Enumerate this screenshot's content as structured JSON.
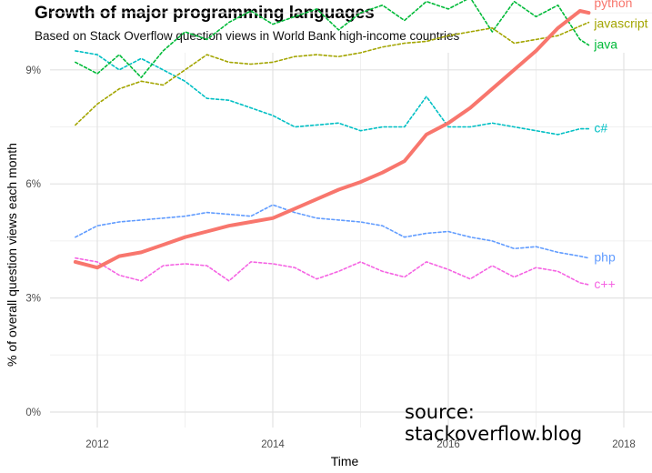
{
  "chart_data": {
    "type": "line",
    "title": "Growth of major programming languages",
    "subtitle": "Based on Stack Overflow question views in World Bank high-income countries",
    "xlabel": "Time",
    "ylabel": "% of overall question views each month",
    "source": "source: stackoverflow.blog",
    "x_ticks": [
      {
        "value": 2012,
        "label": "2012"
      },
      {
        "value": 2014,
        "label": "2014"
      },
      {
        "value": 2016,
        "label": "2016"
      },
      {
        "value": 2018,
        "label": "2018"
      }
    ],
    "y_ticks": [
      {
        "value": 0,
        "label": "0%"
      },
      {
        "value": 3,
        "label": "3%"
      },
      {
        "value": 6,
        "label": "6%"
      },
      {
        "value": 9,
        "label": "9%"
      }
    ],
    "grid": true,
    "legend": "direct labels at line ends",
    "series": [
      {
        "name": "python",
        "color": "#f8766d",
        "line": "solid",
        "width": 4,
        "points": [
          [
            2011.75,
            3.95
          ],
          [
            2012.0,
            3.8
          ],
          [
            2012.25,
            4.1
          ],
          [
            2012.5,
            4.2
          ],
          [
            2012.75,
            4.4
          ],
          [
            2013.0,
            4.6
          ],
          [
            2013.25,
            4.75
          ],
          [
            2013.5,
            4.9
          ],
          [
            2013.75,
            5.0
          ],
          [
            2014.0,
            5.1
          ],
          [
            2014.25,
            5.35
          ],
          [
            2014.5,
            5.6
          ],
          [
            2014.75,
            5.85
          ],
          [
            2015.0,
            6.05
          ],
          [
            2015.25,
            6.3
          ],
          [
            2015.5,
            6.6
          ],
          [
            2015.75,
            7.3
          ],
          [
            2016.0,
            7.6
          ],
          [
            2016.25,
            8.0
          ],
          [
            2016.5,
            8.5
          ],
          [
            2016.75,
            9.0
          ],
          [
            2017.0,
            9.5
          ],
          [
            2017.25,
            10.1
          ],
          [
            2017.5,
            10.55
          ],
          [
            2017.6,
            10.5
          ]
        ]
      },
      {
        "name": "javascript",
        "color": "#a3a500",
        "line": "dashed",
        "width": 1.6,
        "points": [
          [
            2011.75,
            7.55
          ],
          [
            2012.0,
            8.1
          ],
          [
            2012.25,
            8.5
          ],
          [
            2012.5,
            8.7
          ],
          [
            2012.75,
            8.6
          ],
          [
            2013.0,
            9.0
          ],
          [
            2013.25,
            9.4
          ],
          [
            2013.5,
            9.2
          ],
          [
            2013.75,
            9.15
          ],
          [
            2014.0,
            9.2
          ],
          [
            2014.25,
            9.35
          ],
          [
            2014.5,
            9.4
          ],
          [
            2014.75,
            9.35
          ],
          [
            2015.0,
            9.45
          ],
          [
            2015.25,
            9.6
          ],
          [
            2015.5,
            9.7
          ],
          [
            2015.75,
            9.75
          ],
          [
            2016.0,
            9.9
          ],
          [
            2016.25,
            10.0
          ],
          [
            2016.5,
            10.1
          ],
          [
            2016.75,
            9.7
          ],
          [
            2017.0,
            9.8
          ],
          [
            2017.25,
            9.9
          ],
          [
            2017.5,
            10.15
          ],
          [
            2017.6,
            10.25
          ]
        ]
      },
      {
        "name": "java",
        "color": "#00ba38",
        "line": "dashed",
        "width": 1.6,
        "points": [
          [
            2011.75,
            9.2
          ],
          [
            2012.0,
            8.9
          ],
          [
            2012.25,
            9.4
          ],
          [
            2012.5,
            8.8
          ],
          [
            2012.75,
            9.5
          ],
          [
            2013.0,
            10.0
          ],
          [
            2013.25,
            9.8
          ],
          [
            2013.5,
            10.25
          ],
          [
            2013.75,
            10.55
          ],
          [
            2014.0,
            10.2
          ],
          [
            2014.25,
            10.4
          ],
          [
            2014.5,
            10.6
          ],
          [
            2014.75,
            10.05
          ],
          [
            2015.0,
            10.5
          ],
          [
            2015.25,
            10.7
          ],
          [
            2015.5,
            10.3
          ],
          [
            2015.75,
            10.8
          ],
          [
            2016.0,
            10.6
          ],
          [
            2016.25,
            10.9
          ],
          [
            2016.5,
            10.0
          ],
          [
            2016.75,
            10.8
          ],
          [
            2017.0,
            10.4
          ],
          [
            2017.25,
            10.7
          ],
          [
            2017.5,
            9.8
          ],
          [
            2017.6,
            9.65
          ]
        ]
      },
      {
        "name": "c#",
        "color": "#00bfc4",
        "line": "dashed",
        "width": 1.6,
        "points": [
          [
            2011.75,
            9.5
          ],
          [
            2012.0,
            9.4
          ],
          [
            2012.25,
            9.0
          ],
          [
            2012.5,
            9.3
          ],
          [
            2012.75,
            9.0
          ],
          [
            2013.0,
            8.7
          ],
          [
            2013.25,
            8.25
          ],
          [
            2013.5,
            8.2
          ],
          [
            2013.75,
            8.0
          ],
          [
            2014.0,
            7.8
          ],
          [
            2014.25,
            7.5
          ],
          [
            2014.5,
            7.55
          ],
          [
            2014.75,
            7.6
          ],
          [
            2015.0,
            7.4
          ],
          [
            2015.25,
            7.5
          ],
          [
            2015.5,
            7.5
          ],
          [
            2015.75,
            8.3
          ],
          [
            2016.0,
            7.5
          ],
          [
            2016.25,
            7.5
          ],
          [
            2016.5,
            7.6
          ],
          [
            2016.75,
            7.5
          ],
          [
            2017.0,
            7.4
          ],
          [
            2017.25,
            7.3
          ],
          [
            2017.5,
            7.45
          ],
          [
            2017.6,
            7.45
          ]
        ]
      },
      {
        "name": "php",
        "color": "#619cff",
        "line": "dashed",
        "width": 1.6,
        "points": [
          [
            2011.75,
            4.6
          ],
          [
            2012.0,
            4.9
          ],
          [
            2012.25,
            5.0
          ],
          [
            2012.5,
            5.05
          ],
          [
            2012.75,
            5.1
          ],
          [
            2013.0,
            5.15
          ],
          [
            2013.25,
            5.25
          ],
          [
            2013.5,
            5.2
          ],
          [
            2013.75,
            5.15
          ],
          [
            2014.0,
            5.45
          ],
          [
            2014.25,
            5.25
          ],
          [
            2014.5,
            5.1
          ],
          [
            2014.75,
            5.05
          ],
          [
            2015.0,
            5.0
          ],
          [
            2015.25,
            4.9
          ],
          [
            2015.5,
            4.6
          ],
          [
            2015.75,
            4.7
          ],
          [
            2016.0,
            4.75
          ],
          [
            2016.25,
            4.6
          ],
          [
            2016.5,
            4.5
          ],
          [
            2016.75,
            4.3
          ],
          [
            2017.0,
            4.35
          ],
          [
            2017.25,
            4.2
          ],
          [
            2017.5,
            4.1
          ],
          [
            2017.6,
            4.05
          ]
        ]
      },
      {
        "name": "c++",
        "color": "#f564e3",
        "line": "dashed",
        "width": 1.6,
        "points": [
          [
            2011.75,
            4.05
          ],
          [
            2012.0,
            3.95
          ],
          [
            2012.25,
            3.6
          ],
          [
            2012.5,
            3.45
          ],
          [
            2012.75,
            3.85
          ],
          [
            2013.0,
            3.9
          ],
          [
            2013.25,
            3.85
          ],
          [
            2013.5,
            3.45
          ],
          [
            2013.75,
            3.95
          ],
          [
            2014.0,
            3.9
          ],
          [
            2014.25,
            3.8
          ],
          [
            2014.5,
            3.5
          ],
          [
            2014.75,
            3.7
          ],
          [
            2015.0,
            3.95
          ],
          [
            2015.25,
            3.7
          ],
          [
            2015.5,
            3.55
          ],
          [
            2015.75,
            3.95
          ],
          [
            2016.0,
            3.75
          ],
          [
            2016.25,
            3.5
          ],
          [
            2016.5,
            3.85
          ],
          [
            2016.75,
            3.55
          ],
          [
            2017.0,
            3.8
          ],
          [
            2017.25,
            3.7
          ],
          [
            2017.5,
            3.4
          ],
          [
            2017.6,
            3.35
          ]
        ]
      }
    ]
  }
}
